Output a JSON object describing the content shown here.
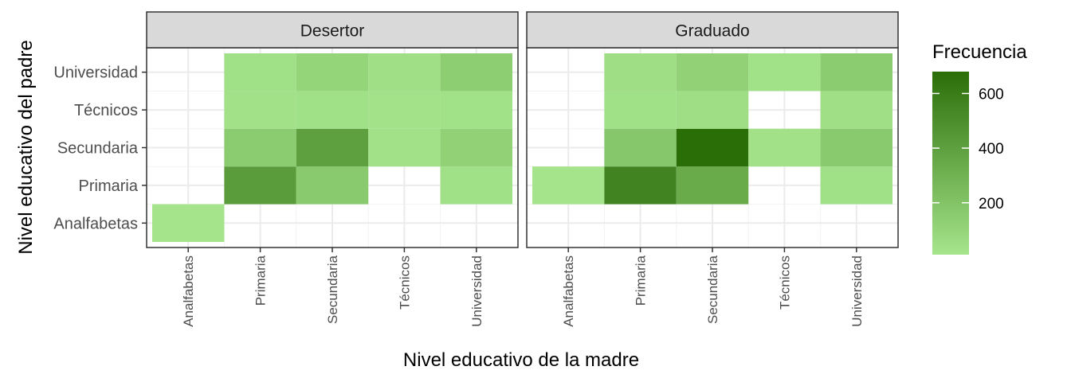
{
  "chart_data": {
    "type": "heatmap",
    "xlabel": "Nivel educativo de la madre",
    "ylabel": "Nivel educativo del padre",
    "x_categories": [
      "Analfabetas",
      "Primaria",
      "Secundaria",
      "Técnicos",
      "Universidad"
    ],
    "y_categories": [
      "Analfabetas",
      "Primaria",
      "Secundaria",
      "Técnicos",
      "Universidad"
    ],
    "legend": {
      "title": "Frecuencia",
      "ticks": [
        200,
        400,
        600
      ],
      "min": 10,
      "max": 680,
      "low_color": "#a6e58c",
      "high_color": "#2a6e08",
      "placement": "right"
    },
    "panels": [
      {
        "title": "Desertor",
        "cells": [
          {
            "x": "Analfabetas",
            "y": "Analfabetas",
            "value": 15
          },
          {
            "x": "Primaria",
            "y": "Primaria",
            "value": 420
          },
          {
            "x": "Secundaria",
            "y": "Primaria",
            "value": 160
          },
          {
            "x": "Universidad",
            "y": "Primaria",
            "value": 40
          },
          {
            "x": "Primaria",
            "y": "Secundaria",
            "value": 150
          },
          {
            "x": "Secundaria",
            "y": "Secundaria",
            "value": 400
          },
          {
            "x": "Técnicos",
            "y": "Secundaria",
            "value": 30
          },
          {
            "x": "Universidad",
            "y": "Secundaria",
            "value": 120
          },
          {
            "x": "Primaria",
            "y": "Técnicos",
            "value": 30
          },
          {
            "x": "Secundaria",
            "y": "Técnicos",
            "value": 40
          },
          {
            "x": "Técnicos",
            "y": "Técnicos",
            "value": 25
          },
          {
            "x": "Universidad",
            "y": "Técnicos",
            "value": 35
          },
          {
            "x": "Primaria",
            "y": "Universidad",
            "value": 40
          },
          {
            "x": "Secundaria",
            "y": "Universidad",
            "value": 100
          },
          {
            "x": "Técnicos",
            "y": "Universidad",
            "value": 45
          },
          {
            "x": "Universidad",
            "y": "Universidad",
            "value": 140
          }
        ]
      },
      {
        "title": "Graduado",
        "cells": [
          {
            "x": "Analfabetas",
            "y": "Primaria",
            "value": 15
          },
          {
            "x": "Primaria",
            "y": "Primaria",
            "value": 560
          },
          {
            "x": "Secundaria",
            "y": "Primaria",
            "value": 340
          },
          {
            "x": "Universidad",
            "y": "Primaria",
            "value": 40
          },
          {
            "x": "Primaria",
            "y": "Secundaria",
            "value": 180
          },
          {
            "x": "Secundaria",
            "y": "Secundaria",
            "value": 680
          },
          {
            "x": "Técnicos",
            "y": "Secundaria",
            "value": 30
          },
          {
            "x": "Universidad",
            "y": "Secundaria",
            "value": 160
          },
          {
            "x": "Primaria",
            "y": "Técnicos",
            "value": 40
          },
          {
            "x": "Secundaria",
            "y": "Técnicos",
            "value": 50
          },
          {
            "x": "Universidad",
            "y": "Técnicos",
            "value": 45
          },
          {
            "x": "Primaria",
            "y": "Universidad",
            "value": 50
          },
          {
            "x": "Secundaria",
            "y": "Universidad",
            "value": 120
          },
          {
            "x": "Técnicos",
            "y": "Universidad",
            "value": 35
          },
          {
            "x": "Universidad",
            "y": "Universidad",
            "value": 150
          }
        ]
      }
    ]
  }
}
